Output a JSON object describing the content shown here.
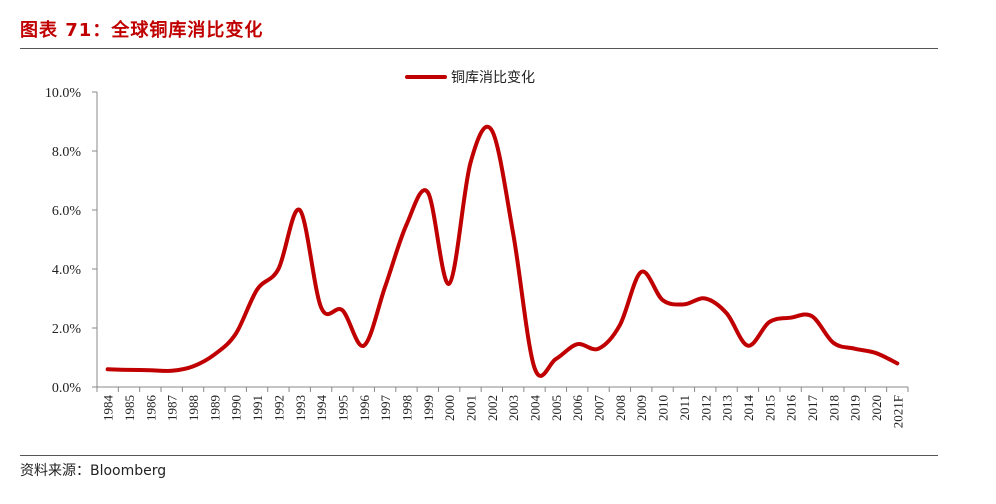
{
  "header": {
    "title": "图表 71：全球铜库消比变化"
  },
  "footer": {
    "source": "资料来源：Bloomberg"
  },
  "colors": {
    "accent": "#c00000",
    "axis": "#888888"
  },
  "chart_data": {
    "type": "line",
    "title": "",
    "xlabel": "",
    "ylabel": "",
    "ylim": [
      0,
      10
    ],
    "y_tick_labels": [
      "0.0%",
      "2.0%",
      "4.0%",
      "6.0%",
      "8.0%",
      "10.0%"
    ],
    "y_ticks": [
      0,
      2,
      4,
      6,
      8,
      10
    ],
    "legend_position": "top-center",
    "grid": false,
    "x": [
      "1984",
      "1985",
      "1986",
      "1987",
      "1988",
      "1989",
      "1990",
      "1991",
      "1992",
      "1993",
      "1994",
      "1995",
      "1996",
      "1997",
      "1998",
      "1999",
      "2000",
      "2001",
      "2002",
      "2003",
      "2004",
      "2005",
      "2006",
      "2007",
      "2008",
      "2009",
      "2010",
      "2011",
      "2012",
      "2013",
      "2014",
      "2015",
      "2016",
      "2017",
      "2018",
      "2019",
      "2020",
      "2021F"
    ],
    "series": [
      {
        "name": "铜库消比变化",
        "color": "#c00000",
        "values": [
          0.6,
          0.58,
          0.57,
          0.55,
          0.7,
          1.1,
          1.8,
          3.3,
          4.0,
          6.0,
          2.7,
          2.6,
          1.4,
          3.4,
          5.5,
          6.6,
          3.5,
          7.6,
          8.7,
          5.2,
          0.65,
          0.95,
          1.45,
          1.3,
          2.1,
          3.9,
          2.95,
          2.8,
          3.0,
          2.5,
          1.4,
          2.2,
          2.35,
          2.4,
          1.5,
          1.3,
          1.15,
          0.8
        ]
      }
    ]
  }
}
